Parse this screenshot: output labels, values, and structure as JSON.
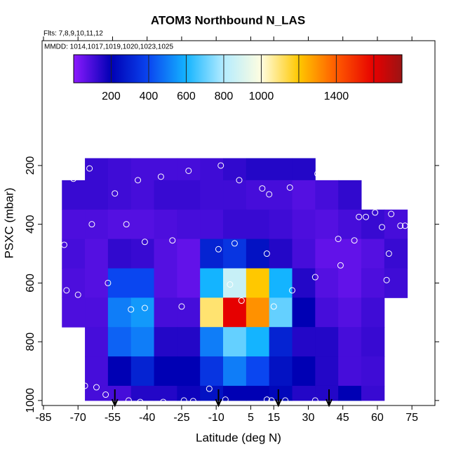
{
  "chart_data": {
    "type": "heatmap",
    "title": "ATOM3 Northbound N_LAS",
    "subtitle": "Flts: 7,8,9,10,11,12",
    "annotation": "MMDD: 1014,1017,1019,1020,1023,1025",
    "x_label": "Latitude (deg N)",
    "y_label": "PSXC (mbar)",
    "xlim": [
      -85.6,
      85
    ],
    "ylim": [
      -225,
      1017
    ],
    "y_inverted": true,
    "xticks": [
      -85,
      -70,
      -55,
      -40,
      -25,
      -10,
      5,
      15,
      30,
      45,
      60,
      75
    ],
    "yticks": [
      200,
      400,
      600,
      800,
      1000
    ],
    "x_edges": [
      -77,
      -67,
      -57,
      -47,
      -37,
      -27,
      -17,
      -7,
      3,
      13,
      23,
      33,
      43,
      53,
      63,
      73
    ],
    "y_edges": [
      175,
      250,
      350,
      450,
      550,
      650,
      750,
      850,
      950,
      1000
    ],
    "z": [
      [
        null,
        120,
        110,
        100,
        100,
        100,
        110,
        130,
        150,
        150,
        150,
        null,
        null,
        null,
        null
      ],
      [
        120,
        120,
        110,
        100,
        120,
        120,
        110,
        110,
        100,
        100,
        80,
        100,
        130,
        null,
        null
      ],
      [
        90,
        90,
        80,
        80,
        90,
        100,
        100,
        120,
        120,
        110,
        90,
        80,
        100,
        120,
        100
      ],
      [
        100,
        80,
        130,
        120,
        80,
        60,
        300,
        350,
        250,
        150,
        100,
        60,
        60,
        80,
        120
      ],
      [
        90,
        80,
        400,
        400,
        80,
        60,
        600,
        850,
        1200,
        600,
        150,
        80,
        60,
        90,
        110
      ],
      [
        90,
        90,
        500,
        550,
        100,
        100,
        1100,
        1600,
        1300,
        700,
        200,
        100,
        80,
        110,
        null
      ],
      [
        null,
        100,
        450,
        500,
        150,
        150,
        500,
        700,
        600,
        300,
        150,
        150,
        100,
        120,
        null
      ],
      [
        null,
        100,
        200,
        300,
        200,
        200,
        350,
        500,
        400,
        250,
        200,
        150,
        100,
        110,
        null
      ],
      [
        null,
        100,
        100,
        150,
        150,
        180,
        250,
        200,
        200,
        220,
        150,
        150,
        200,
        120,
        null
      ]
    ],
    "colorbar": {
      "lim": [
        0,
        1750
      ],
      "ticks": [
        200,
        400,
        600,
        800,
        1000,
        1400
      ],
      "stops": [
        0,
        200,
        400,
        600,
        800,
        1000,
        1200,
        1400,
        1600,
        1750
      ],
      "colors": [
        "#8c1aff",
        "#0000b4",
        "#0a46f0",
        "#14b4ff",
        "#b4ecff",
        "#fffde0",
        "#ffc800",
        "#ff5a00",
        "#e60000",
        "#9b1414"
      ]
    },
    "points": {
      "lat": [
        -74,
        -71,
        -67,
        -62,
        -58,
        -48,
        -43,
        -33,
        -24,
        -20,
        -13,
        -6,
        12,
        14,
        20,
        33,
        -72,
        -65,
        -54,
        -44,
        -34,
        -22,
        -8,
        0,
        10,
        13,
        22,
        34,
        52,
        55,
        59,
        62,
        66,
        70,
        -76,
        -64,
        -49,
        -41,
        -29,
        -2,
        12,
        43,
        50,
        65,
        72,
        -75,
        -70,
        -57,
        -47,
        -41,
        -25,
        -9,
        15,
        23,
        33,
        44,
        64,
        73,
        -4,
        1
      ],
      "pressure": [
        960,
        960,
        950,
        955,
        980,
        1000,
        1005,
        1005,
        1000,
        1002,
        960,
        997,
        997,
        1000,
        1000,
        1000,
        245,
        210,
        295,
        250,
        238,
        218,
        200,
        250,
        278,
        298,
        275,
        228,
        375,
        375,
        360,
        410,
        365,
        405,
        470,
        400,
        400,
        460,
        455,
        465,
        500,
        450,
        455,
        500,
        405,
        625,
        640,
        600,
        690,
        685,
        680,
        485,
        680,
        625,
        580,
        540,
        590,
        670,
        605,
        660
      ],
      "color": "#ffffff"
    },
    "arrows_lat": [
      -54,
      -9,
      17,
      39
    ]
  }
}
